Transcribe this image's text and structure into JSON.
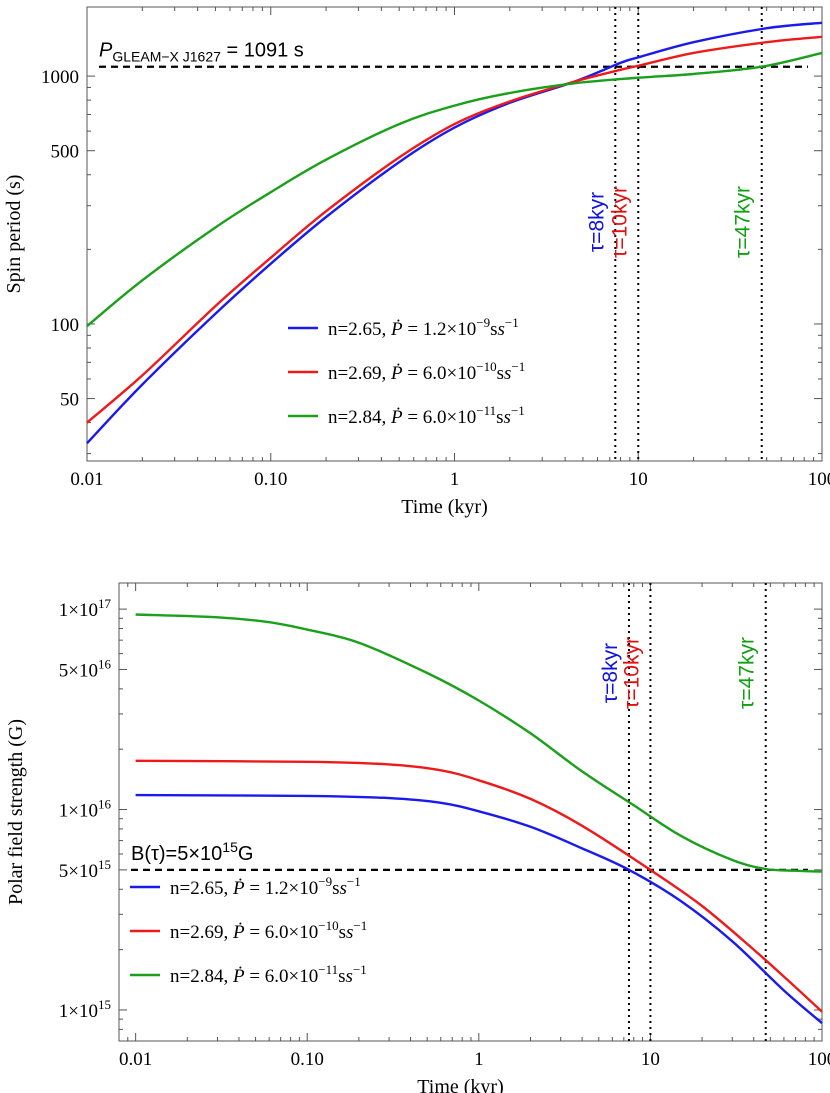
{
  "chart_data": [
    {
      "type": "line",
      "scale": {
        "x": "log",
        "y": "log"
      },
      "xlabel": "Time (kyr)",
      "ylabel": "Spin period (s)",
      "xlim": [
        0.01,
        100
      ],
      "ylim": [
        28,
        1900
      ],
      "xticks": [
        0.01,
        0.1,
        1,
        10,
        100
      ],
      "xtick_labels": [
        "0.01",
        "0.10",
        "1",
        "10",
        "100"
      ],
      "yticks": [
        50,
        100,
        500,
        1000
      ],
      "ytick_labels": [
        "50",
        "100",
        "500",
        "1000"
      ],
      "hline": {
        "value": 1091,
        "label": "P",
        "label_sub": "GLEAM−X J1627",
        "label_rest": " = 1091 s"
      },
      "vlines": [
        {
          "x": 7.5,
          "label": "τ=8kyr",
          "color": "#1010e0"
        },
        {
          "x": 10,
          "label": "τ=10kyr",
          "color": "#e01010"
        },
        {
          "x": 47,
          "label": "τ=47kyr",
          "color": "#12a012"
        }
      ],
      "legend_position": "bottom-center",
      "series": [
        {
          "name": "n=2.65, Ṗ = 1.2×10⁻⁹ ss⁻¹",
          "name_n": "n=2.65,",
          "name_val": "1.2×10",
          "name_exp": "−9",
          "color": "#1a1aee",
          "x": [
            0.01,
            0.02,
            0.05,
            0.1,
            0.2,
            0.5,
            1,
            2,
            4.5,
            8,
            10,
            20,
            50,
            100
          ],
          "y": [
            33,
            57,
            110,
            175,
            270,
            450,
            620,
            780,
            950,
            1130,
            1190,
            1370,
            1560,
            1640
          ]
        },
        {
          "name": "n=2.69, Ṗ = 6.0×10⁻¹⁰ ss⁻¹",
          "name_n": "n=2.69,",
          "name_val": "6.0×10",
          "name_exp": "−10",
          "color": "#ee1a1a",
          "x": [
            0.01,
            0.02,
            0.05,
            0.1,
            0.2,
            0.5,
            1,
            2,
            4.5,
            8,
            10,
            20,
            50,
            100
          ],
          "y": [
            40,
            62,
            118,
            185,
            285,
            470,
            640,
            790,
            950,
            1060,
            1100,
            1240,
            1370,
            1440
          ]
        },
        {
          "name": "n=2.84, Ṗ = 6.0×10⁻¹¹ ss⁻¹",
          "name_n": "n=2.84,",
          "name_val": "6.0×10",
          "name_exp": "−11",
          "color": "#1aa01a",
          "x": [
            0.01,
            0.02,
            0.05,
            0.1,
            0.2,
            0.5,
            1,
            2,
            4.5,
            10,
            20,
            47,
            100
          ],
          "y": [
            98,
            150,
            245,
            340,
            460,
            640,
            760,
            855,
            935,
            985,
            1020,
            1091,
            1240
          ]
        }
      ]
    },
    {
      "type": "line",
      "scale": {
        "x": "log",
        "y": "log"
      },
      "xlabel": "Time (kyr)",
      "ylabel": "Polar field strength (G)",
      "xlim": [
        0.008,
        100
      ],
      "ylim": [
        700000000000000.0,
        1.35e+17
      ],
      "xticks": [
        0.01,
        0.1,
        1,
        10,
        100
      ],
      "xtick_labels": [
        "0.01",
        "0.10",
        "1",
        "10",
        "100"
      ],
      "yticks": [
        1000000000000000.0,
        5000000000000000.0,
        1e+16,
        5e+16,
        1e+17
      ],
      "ytick_labels": [
        [
          "1",
          "15"
        ],
        [
          "5",
          "15"
        ],
        [
          "1",
          "16"
        ],
        [
          "5",
          "16"
        ],
        [
          "1",
          "17"
        ]
      ],
      "hline": {
        "value": 5000000000000000.0,
        "label": "B(τ)=5×10",
        "label_exp": "15",
        "label_rest": "G"
      },
      "vlines": [
        {
          "x": 7.5,
          "label": "τ=8kyr",
          "color": "#1010e0"
        },
        {
          "x": 10,
          "label": "τ=10kyr",
          "color": "#e01010"
        },
        {
          "x": 47,
          "label": "τ=47kyr",
          "color": "#12a012"
        }
      ],
      "legend_position": "bottom-left",
      "series": [
        {
          "name": "n=2.65, Ṗ = 1.2×10⁻⁹ ss⁻¹",
          "name_n": "n=2.65,",
          "name_val": "1.2×10",
          "name_exp": "−9",
          "color": "#1a1aee",
          "x": [
            0.01,
            0.1,
            0.3,
            0.6,
            1,
            2,
            4,
            7.5,
            15,
            30,
            60,
            100
          ],
          "y": [
            1.18e+16,
            1.17e+16,
            1.14e+16,
            1.08e+16,
            9800000000000000.0,
            8200000000000000.0,
            6400000000000000.0,
            5000000000000000.0,
            3500000000000000.0,
            2200000000000000.0,
            1250000000000000.0,
            860000000000000.0
          ]
        },
        {
          "name": "n=2.69, Ṗ = 6.0×10⁻¹⁰ ss⁻¹",
          "name_n": "n=2.69,",
          "name_val": "6.0×10",
          "name_exp": "−10",
          "color": "#ee1a1a",
          "x": [
            0.01,
            0.1,
            0.3,
            0.6,
            1,
            2,
            4,
            10,
            20,
            40,
            70,
            100
          ],
          "y": [
            1.75e+16,
            1.73e+16,
            1.68e+16,
            1.57e+16,
            1.4e+16,
            1.13e+16,
            8300000000000000.0,
            5000000000000000.0,
            3300000000000000.0,
            2000000000000000.0,
            1300000000000000.0,
            980000000000000.0
          ]
        },
        {
          "name": "n=2.84, Ṗ = 6.0×10⁻¹¹ ss⁻¹",
          "name_n": "n=2.84,",
          "name_val": "6.0×10",
          "name_exp": "−11",
          "color": "#1aa01a",
          "x": [
            0.01,
            0.03,
            0.06,
            0.1,
            0.2,
            0.5,
            1,
            2,
            4,
            8,
            15,
            30,
            47,
            70,
            100
          ],
          "y": [
            9.4e+16,
            9.1e+16,
            8.6e+16,
            7.9e+16,
            6.8e+16,
            4.8e+16,
            3.5e+16,
            2.4e+16,
            1.55e+16,
            1.05e+16,
            7400000000000000.0,
            5600000000000000.0,
            5050000000000000.0,
            4950000000000000.0,
            4900000000000000.0
          ]
        }
      ]
    }
  ]
}
